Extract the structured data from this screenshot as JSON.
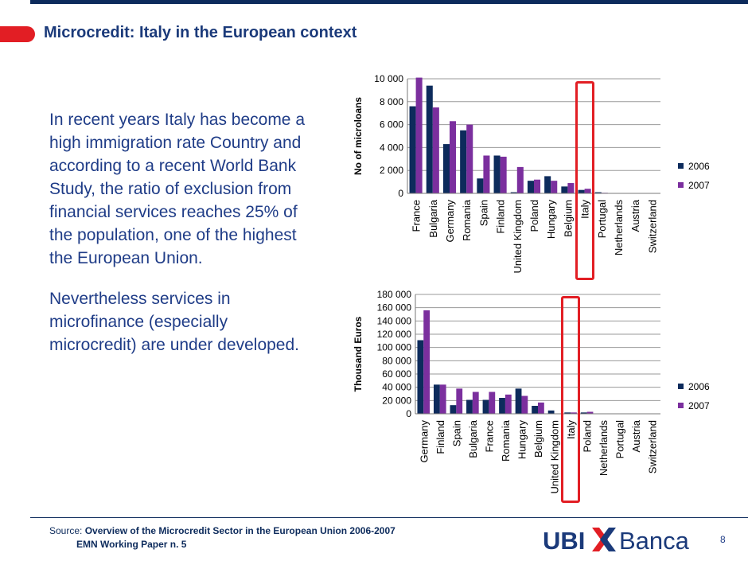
{
  "header": {
    "title": "Microcredit: Italy in the European context"
  },
  "body": {
    "paragraph_1": "In recent years Italy has become a high immigration rate Country and according to a recent World Bank Study, the ratio of exclusion from financial services reaches 25% of the population, one of the highest the European Union.",
    "paragraph_2": "Nevertheless services in microfinance (especially microcredit) are under developed."
  },
  "footer": {
    "source_label": "Source:",
    "source_title": "Overview of the Microcredit Sector in the European Union 2006-2007",
    "source_line2": "EMN Working Paper n. 5",
    "page_number": "8",
    "logo_ubi": "UBI",
    "logo_banca": "Banca"
  },
  "colors": {
    "series_2006": "#0d2b5c",
    "series_2007": "#7b2f9e",
    "highlight": "#e21e24",
    "title": "#1b3a7a",
    "text": "#1f3c87"
  },
  "chart_data": [
    {
      "type": "bar",
      "ylabel": "No of microloans",
      "ylim": [
        0,
        10000
      ],
      "yticks": [
        "0",
        "2 000",
        "4 000",
        "6 000",
        "8 000",
        "10 000"
      ],
      "categories": [
        "France",
        "Bulgaria",
        "Germany",
        "Romania",
        "Spain",
        "Finland",
        "United Kingdom",
        "Poland",
        "Hungary",
        "Belgium",
        "Italy",
        "Portugal",
        "Netherlands",
        "Austria",
        "Switzerland"
      ],
      "series": [
        {
          "name": "2006",
          "values": [
            7600,
            9400,
            4300,
            5500,
            1300,
            3300,
            100,
            1100,
            1500,
            600,
            300,
            100,
            0,
            0,
            0
          ]
        },
        {
          "name": "2007",
          "values": [
            10100,
            7500,
            6300,
            6000,
            3300,
            3200,
            2300,
            1200,
            1100,
            900,
            400,
            50,
            0,
            0,
            0
          ]
        }
      ],
      "highlight": "Italy",
      "legend_position": "right",
      "grid": true
    },
    {
      "type": "bar",
      "ylabel": "Thousand Euros",
      "ylim": [
        0,
        180000
      ],
      "yticks": [
        "0",
        "20 000",
        "40 000",
        "60 000",
        "80 000",
        "100 000",
        "120 000",
        "140 000",
        "160 000",
        "180 000"
      ],
      "categories": [
        "Germany",
        "Finland",
        "Spain",
        "Bulgaria",
        "France",
        "Romania",
        "Hungary",
        "Belgium",
        "United Kingdom",
        "Italy",
        "Poland",
        "Netherlands",
        "Portugal",
        "Austria",
        "Switzerland"
      ],
      "series": [
        {
          "name": "2006",
          "values": [
            111000,
            44000,
            13000,
            21000,
            21000,
            24000,
            38000,
            12000,
            5000,
            2000,
            2000,
            0,
            0,
            0,
            0
          ]
        },
        {
          "name": "2007",
          "values": [
            156000,
            44000,
            38000,
            33000,
            33000,
            29000,
            27000,
            17000,
            0,
            2000,
            3000,
            0,
            0,
            0,
            0
          ]
        }
      ],
      "highlight": "Italy",
      "legend_position": "right",
      "grid": true
    }
  ]
}
